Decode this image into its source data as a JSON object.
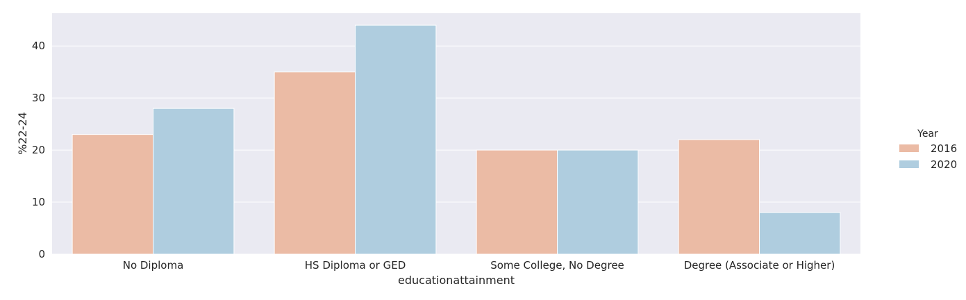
{
  "chart_data": {
    "type": "bar",
    "categories": [
      "No Diploma",
      "HS Diploma or GED",
      "Some College, No Degree",
      "Degree (Associate or Higher)"
    ],
    "series": [
      {
        "name": "2016",
        "values": [
          23,
          35,
          20,
          22
        ],
        "color": "#ebbba5"
      },
      {
        "name": "2020",
        "values": [
          28,
          44,
          20,
          8
        ],
        "color": "#afcddf"
      }
    ],
    "xlabel": "educationattainment",
    "ylabel": "%22-24",
    "ylim": [
      0,
      46.3
    ],
    "yticks": [
      0,
      10,
      20,
      30,
      40
    ],
    "grid": true,
    "legend": {
      "title": "Year",
      "placement": "right"
    },
    "background_color": "#eaeaf2"
  }
}
